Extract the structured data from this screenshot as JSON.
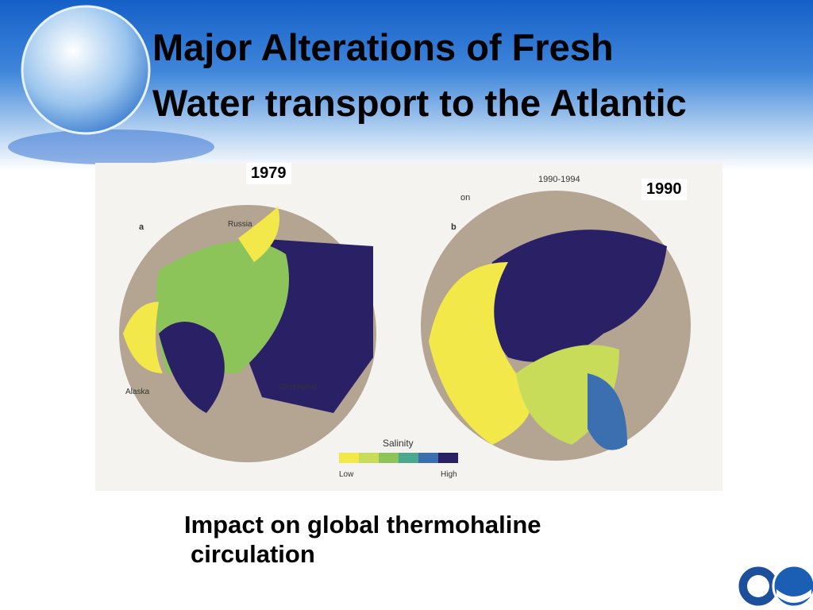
{
  "header": {
    "title_lines": [
      "Major Alterations of Fresh",
      "Water transport to the Atlantic"
    ]
  },
  "figure": {
    "year_left": "1979",
    "year_right": "1990",
    "map_left": {
      "panel": "a",
      "labels": [
        "Russia",
        "Alaska",
        "Greenland"
      ]
    },
    "map_right": {
      "panel": "b",
      "period": "1990-1994",
      "fragment": "on"
    },
    "legend": {
      "title": "Salinity",
      "low": "Low",
      "high": "High"
    }
  },
  "caption": {
    "lines": [
      "Impact on global thermohaline",
      "circulation"
    ]
  }
}
